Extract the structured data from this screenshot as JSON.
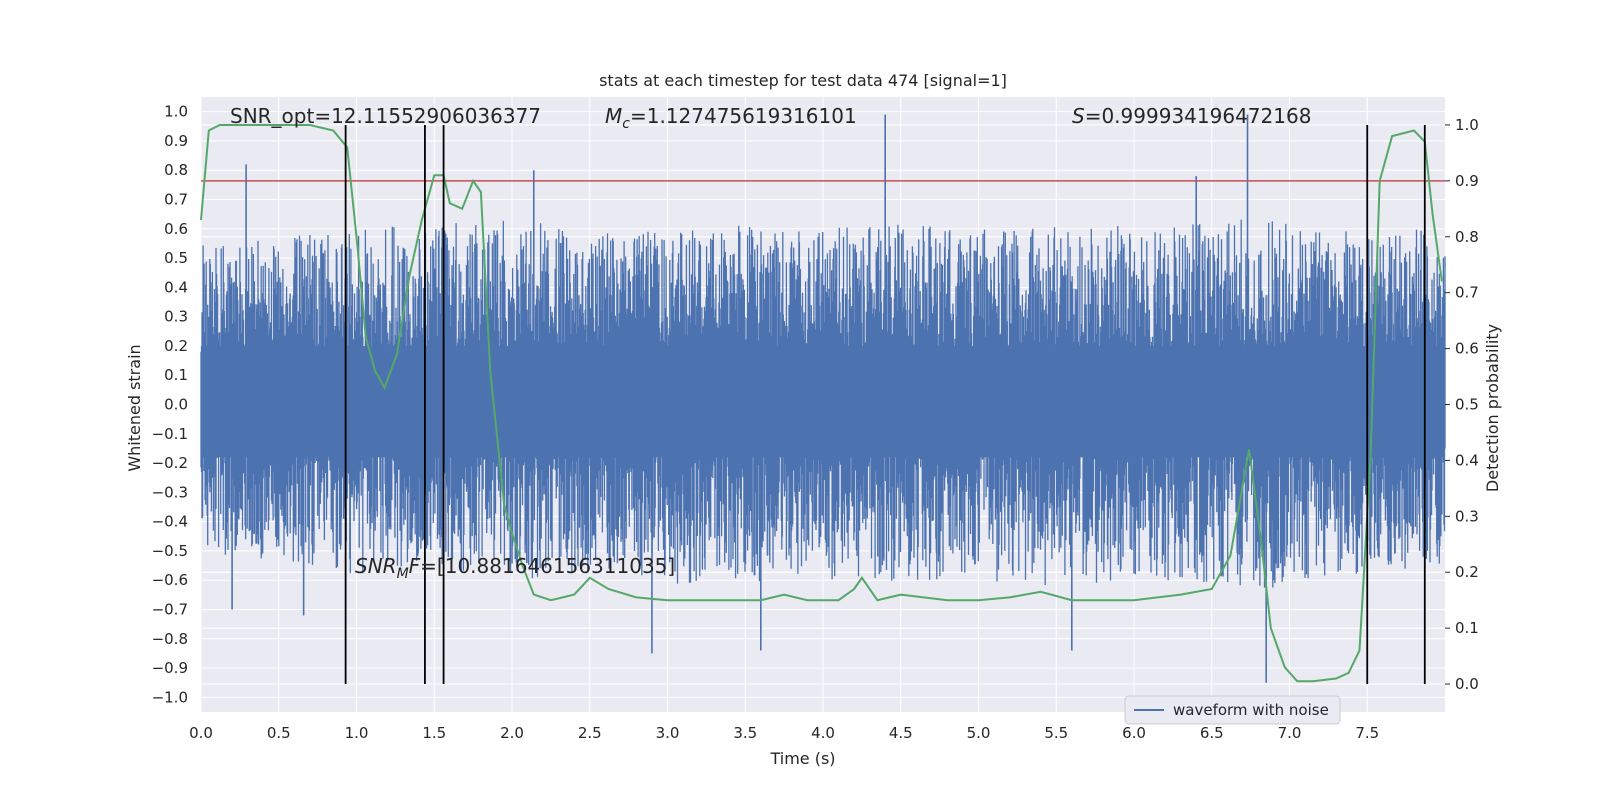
{
  "chart_data": {
    "type": "line",
    "title": "stats at each timestep for test data 474 [signal=1]",
    "xlabel": "Time (s)",
    "ylabel": "Whitened strain",
    "ylabel_right": "Detection probability",
    "xlim": [
      0,
      8
    ],
    "ylim": [
      -1.05,
      1.05
    ],
    "ylim_right": [
      -0.05,
      1.05
    ],
    "x_ticks": [
      "0.0",
      "0.5",
      "1.0",
      "1.5",
      "2.0",
      "2.5",
      "3.0",
      "3.5",
      "4.0",
      "4.5",
      "5.0",
      "5.5",
      "6.0",
      "6.5",
      "7.0",
      "7.5"
    ],
    "y_ticks": [
      "1.0",
      "0.9",
      "0.8",
      "0.7",
      "0.6",
      "0.5",
      "0.4",
      "0.3",
      "0.2",
      "0.1",
      "0.0",
      "-0.1",
      "-0.2",
      "-0.3",
      "-0.4",
      "-0.5",
      "-0.6",
      "-0.7",
      "-0.8",
      "-0.9",
      "-1.0"
    ],
    "y_ticks_right": [
      "1.0",
      "0.9",
      "0.8",
      "0.7",
      "0.6",
      "0.5",
      "0.4",
      "0.3",
      "0.2",
      "0.1",
      "0.0"
    ],
    "grid": true,
    "legend": {
      "position": "lower-right",
      "entries": [
        "waveform with noise"
      ]
    },
    "colors": {
      "background": "#eaeaf2",
      "waveform": "#4c72b0",
      "probability": "#55a868",
      "threshold": "#c44e52",
      "markers": "#000000",
      "grid": "#ffffff"
    },
    "annotations": {
      "snr_opt": "SNR_opt=12.11552906036377",
      "mc": "=1.127475619316101",
      "mc_symbol": "M",
      "mc_sub": "c",
      "s": "=0.999934196472168",
      "s_symbol": "S",
      "snr_mf_symbol": "SNR",
      "snr_mf_sub": "M",
      "snr_mf_tail": "F",
      "snr_mf_value": "=[10.881646156311035]"
    },
    "threshold_right": 0.9,
    "vertical_lines_x": [
      0.93,
      1.44,
      1.56,
      7.5,
      7.87
    ],
    "series": [
      {
        "name": "waveform with noise",
        "axis": "left",
        "envelope": {
          "x": [
            0.0,
            0.5,
            1.0,
            1.5,
            2.0,
            2.5,
            3.0,
            3.5,
            4.0,
            4.5,
            5.0,
            5.5,
            6.0,
            6.5,
            7.0,
            7.5,
            8.0
          ],
          "max": [
            0.55,
            0.58,
            0.6,
            0.62,
            0.63,
            0.6,
            0.59,
            0.62,
            0.6,
            0.62,
            0.6,
            0.61,
            0.62,
            0.63,
            0.64,
            0.6,
            0.6
          ],
          "min": [
            -0.5,
            -0.55,
            -0.58,
            -0.56,
            -0.6,
            -0.58,
            -0.62,
            -0.6,
            -0.62,
            -0.6,
            -0.6,
            -0.62,
            -0.6,
            -0.62,
            -0.63,
            -0.58,
            -0.55
          ]
        },
        "spikes": [
          {
            "x": 0.29,
            "y": 0.82
          },
          {
            "x": 2.14,
            "y": 0.8
          },
          {
            "x": 4.4,
            "y": 0.99
          },
          {
            "x": 6.73,
            "y": 0.99
          },
          {
            "x": 6.4,
            "y": 0.78
          },
          {
            "x": 2.9,
            "y": -0.85
          },
          {
            "x": 3.6,
            "y": -0.84
          },
          {
            "x": 6.85,
            "y": -0.95
          },
          {
            "x": 5.6,
            "y": -0.84
          },
          {
            "x": 0.66,
            "y": -0.72
          },
          {
            "x": 0.2,
            "y": -0.7
          }
        ]
      },
      {
        "name": "",
        "axis": "right",
        "x": [
          0.0,
          0.05,
          0.12,
          0.3,
          0.5,
          0.7,
          0.85,
          0.94,
          1.0,
          1.06,
          1.12,
          1.18,
          1.26,
          1.34,
          1.42,
          1.5,
          1.56,
          1.6,
          1.68,
          1.75,
          1.8,
          1.86,
          1.95,
          2.0,
          2.07,
          2.14,
          2.25,
          2.4,
          2.5,
          2.62,
          2.8,
          3.0,
          3.3,
          3.6,
          3.75,
          3.9,
          4.1,
          4.2,
          4.25,
          4.35,
          4.5,
          4.8,
          5.0,
          5.2,
          5.4,
          5.6,
          6.0,
          6.3,
          6.5,
          6.62,
          6.74,
          6.82,
          6.88,
          6.97,
          7.05,
          7.15,
          7.3,
          7.38,
          7.45,
          7.52,
          7.58,
          7.66,
          7.8,
          7.87,
          7.92,
          7.98
        ],
        "values": [
          0.83,
          0.99,
          1.0,
          1.0,
          1.0,
          1.0,
          0.99,
          0.96,
          0.8,
          0.62,
          0.56,
          0.53,
          0.59,
          0.73,
          0.83,
          0.91,
          0.91,
          0.86,
          0.85,
          0.9,
          0.88,
          0.56,
          0.32,
          0.27,
          0.21,
          0.16,
          0.15,
          0.16,
          0.19,
          0.17,
          0.155,
          0.15,
          0.15,
          0.15,
          0.16,
          0.15,
          0.15,
          0.17,
          0.19,
          0.15,
          0.16,
          0.15,
          0.15,
          0.155,
          0.165,
          0.15,
          0.15,
          0.16,
          0.17,
          0.23,
          0.42,
          0.25,
          0.1,
          0.03,
          0.005,
          0.005,
          0.01,
          0.02,
          0.06,
          0.4,
          0.9,
          0.98,
          0.99,
          0.97,
          0.84,
          0.72
        ]
      }
    ]
  }
}
